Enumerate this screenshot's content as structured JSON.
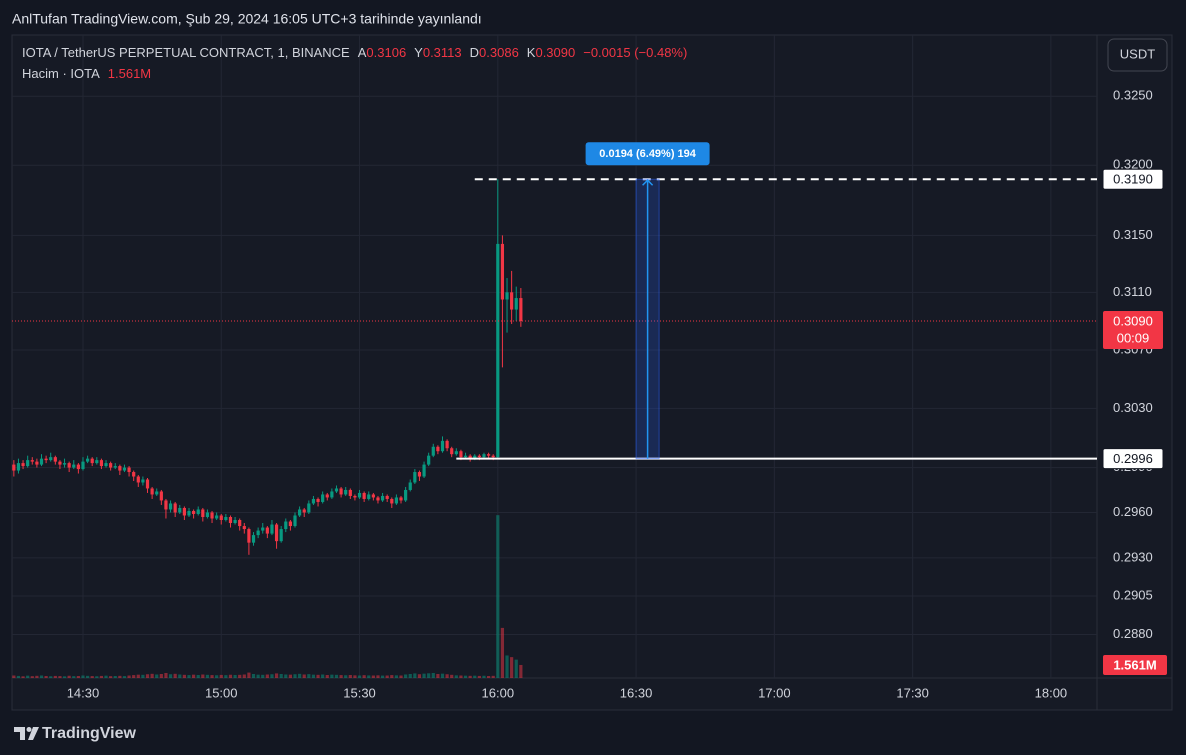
{
  "header": {
    "published": "AnlTufan TradingView.com, Şub 29, 2024 16:05 UTC+3 tarihinde yayınlandı"
  },
  "footer": {
    "brand": "TradingView"
  },
  "chart_data": {
    "type": "candlestick",
    "currency": "USDT",
    "legend": {
      "symbol": "IOTA / TetherUS PERPETUAL CONTRACT, 1, BINANCE",
      "o_key": "A",
      "o": "0.3106",
      "h_key": "Y",
      "h": "0.3113",
      "l_key": "D",
      "l": "0.3086",
      "c_key": "K",
      "c": "0.3090",
      "change": "−0.0015 (−0.48%)",
      "volume_key": "Hacim · IOTA",
      "volume": "1.561M"
    },
    "up_color": "#089981",
    "down_color": "#f23645",
    "log_scale": true,
    "grid": true,
    "xlim": [
      854.6,
      1090
    ],
    "xticks": [
      {
        "value": 870,
        "label": "14:30"
      },
      {
        "value": 900,
        "label": "15:00"
      },
      {
        "value": 930,
        "label": "15:30"
      },
      {
        "value": 960,
        "label": "16:00"
      },
      {
        "value": 990,
        "label": "16:30"
      },
      {
        "value": 1020,
        "label": "17:00"
      },
      {
        "value": 1050,
        "label": "17:30"
      },
      {
        "value": 1080,
        "label": "18:00"
      }
    ],
    "ylim": [
      0.2852,
      0.3295
    ],
    "yticks": [
      {
        "value": 0.325,
        "label": "0.3250"
      },
      {
        "value": 0.32,
        "label": "0.3200"
      },
      {
        "value": 0.315,
        "label": "0.3150"
      },
      {
        "value": 0.311,
        "label": "0.3110"
      },
      {
        "value": 0.307,
        "label": "0.3070"
      },
      {
        "value": 0.303,
        "label": "0.3030"
      },
      {
        "value": 0.299,
        "label": "0.2990"
      },
      {
        "value": 0.296,
        "label": "0.2960"
      },
      {
        "value": 0.293,
        "label": "0.2930"
      },
      {
        "value": 0.2905,
        "label": "0.2905"
      },
      {
        "value": 0.288,
        "label": "0.2880"
      }
    ],
    "x": [
      855,
      856,
      857,
      858,
      859,
      860,
      861,
      862,
      863,
      864,
      865,
      866,
      867,
      868,
      869,
      870,
      871,
      872,
      873,
      874,
      875,
      876,
      877,
      878,
      879,
      880,
      881,
      882,
      883,
      884,
      885,
      886,
      887,
      888,
      889,
      890,
      891,
      892,
      893,
      894,
      895,
      896,
      897,
      898,
      899,
      900,
      901,
      902,
      903,
      904,
      905,
      906,
      907,
      908,
      909,
      910,
      911,
      912,
      913,
      914,
      915,
      916,
      917,
      918,
      919,
      920,
      921,
      922,
      923,
      924,
      925,
      926,
      927,
      928,
      929,
      930,
      931,
      932,
      933,
      934,
      935,
      936,
      937,
      938,
      939,
      940,
      941,
      942,
      943,
      944,
      945,
      946,
      947,
      948,
      949,
      950,
      951,
      952,
      953,
      954,
      955,
      956,
      957,
      958,
      959,
      960,
      961,
      962,
      963,
      964,
      965
    ],
    "ohlc": [
      [
        0.2992,
        0.2995,
        0.2984,
        0.2988
      ],
      [
        0.2988,
        0.2996,
        0.2986,
        0.2993
      ],
      [
        0.2993,
        0.2995,
        0.2989,
        0.2991
      ],
      [
        0.2991,
        0.2998,
        0.299,
        0.2995
      ],
      [
        0.2995,
        0.2997,
        0.2992,
        0.2994
      ],
      [
        0.2994,
        0.2996,
        0.299,
        0.2992
      ],
      [
        0.2992,
        0.2999,
        0.2991,
        0.2996
      ],
      [
        0.2996,
        0.2998,
        0.2993,
        0.2995
      ],
      [
        0.2995,
        0.3,
        0.2994,
        0.2997
      ],
      [
        0.2997,
        0.2998,
        0.2992,
        0.2994
      ],
      [
        0.2994,
        0.2995,
        0.2989,
        0.2992
      ],
      [
        0.2992,
        0.2996,
        0.299,
        0.2993
      ],
      [
        0.2993,
        0.2994,
        0.2987,
        0.299
      ],
      [
        0.299,
        0.2995,
        0.2989,
        0.2992
      ],
      [
        0.2992,
        0.2993,
        0.2986,
        0.2989
      ],
      [
        0.2989,
        0.2997,
        0.2988,
        0.2994
      ],
      [
        0.2994,
        0.2998,
        0.2993,
        0.2996
      ],
      [
        0.2996,
        0.2997,
        0.2991,
        0.2993
      ],
      [
        0.2993,
        0.2997,
        0.2992,
        0.2995
      ],
      [
        0.2995,
        0.2996,
        0.2989,
        0.2991
      ],
      [
        0.2991,
        0.2995,
        0.299,
        0.2993
      ],
      [
        0.2993,
        0.2994,
        0.2988,
        0.299
      ],
      [
        0.299,
        0.2993,
        0.2989,
        0.2991
      ],
      [
        0.2991,
        0.2992,
        0.2985,
        0.2988
      ],
      [
        0.2988,
        0.2992,
        0.2987,
        0.299
      ],
      [
        0.299,
        0.2991,
        0.2984,
        0.2987
      ],
      [
        0.2987,
        0.2988,
        0.2981,
        0.2984
      ],
      [
        0.2984,
        0.2985,
        0.2977,
        0.298
      ],
      [
        0.298,
        0.2984,
        0.2978,
        0.2982
      ],
      [
        0.2982,
        0.2983,
        0.2973,
        0.2976
      ],
      [
        0.2976,
        0.2977,
        0.2969,
        0.2972
      ],
      [
        0.2972,
        0.2976,
        0.2971,
        0.2974
      ],
      [
        0.2974,
        0.2975,
        0.2965,
        0.2968
      ],
      [
        0.2968,
        0.2969,
        0.2956,
        0.2962
      ],
      [
        0.2962,
        0.2968,
        0.296,
        0.2966
      ],
      [
        0.2966,
        0.2967,
        0.2957,
        0.296
      ],
      [
        0.296,
        0.2965,
        0.2959,
        0.2963
      ],
      [
        0.2963,
        0.2964,
        0.2955,
        0.2958
      ],
      [
        0.2958,
        0.2963,
        0.2957,
        0.2961
      ],
      [
        0.2961,
        0.2962,
        0.2956,
        0.2959
      ],
      [
        0.2959,
        0.2964,
        0.2958,
        0.2962
      ],
      [
        0.2962,
        0.2963,
        0.2954,
        0.2957
      ],
      [
        0.2957,
        0.2962,
        0.2956,
        0.296
      ],
      [
        0.296,
        0.2961,
        0.2953,
        0.2956
      ],
      [
        0.2956,
        0.296,
        0.2955,
        0.2958
      ],
      [
        0.2958,
        0.2959,
        0.2952,
        0.2955
      ],
      [
        0.2955,
        0.2959,
        0.2954,
        0.2957
      ],
      [
        0.2957,
        0.2958,
        0.295,
        0.2953
      ],
      [
        0.2953,
        0.2957,
        0.2952,
        0.2955
      ],
      [
        0.2955,
        0.2956,
        0.2948,
        0.2951
      ],
      [
        0.2951,
        0.2953,
        0.2946,
        0.2949
      ],
      [
        0.2949,
        0.295,
        0.2932,
        0.294
      ],
      [
        0.294,
        0.2947,
        0.2938,
        0.2945
      ],
      [
        0.2945,
        0.295,
        0.2943,
        0.2948
      ],
      [
        0.2948,
        0.2953,
        0.2946,
        0.295
      ],
      [
        0.295,
        0.2951,
        0.2943,
        0.2946
      ],
      [
        0.2946,
        0.2955,
        0.2945,
        0.2952
      ],
      [
        0.2952,
        0.2953,
        0.2936,
        0.2941
      ],
      [
        0.2941,
        0.2951,
        0.294,
        0.2949
      ],
      [
        0.2949,
        0.2956,
        0.2947,
        0.2954
      ],
      [
        0.2954,
        0.2955,
        0.2948,
        0.2951
      ],
      [
        0.2951,
        0.296,
        0.295,
        0.2958
      ],
      [
        0.2958,
        0.2964,
        0.2957,
        0.2962
      ],
      [
        0.2962,
        0.2963,
        0.2957,
        0.296
      ],
      [
        0.296,
        0.2968,
        0.2959,
        0.2966
      ],
      [
        0.2966,
        0.2971,
        0.2965,
        0.2969
      ],
      [
        0.2969,
        0.297,
        0.2964,
        0.2967
      ],
      [
        0.2967,
        0.2974,
        0.2966,
        0.2972
      ],
      [
        0.2972,
        0.2973,
        0.2968,
        0.297
      ],
      [
        0.297,
        0.2976,
        0.2969,
        0.2974
      ],
      [
        0.2974,
        0.2978,
        0.2973,
        0.2976
      ],
      [
        0.2976,
        0.2977,
        0.297,
        0.2972
      ],
      [
        0.2972,
        0.2977,
        0.2971,
        0.2975
      ],
      [
        0.2975,
        0.2976,
        0.2969,
        0.2971
      ],
      [
        0.2971,
        0.2972,
        0.2968,
        0.297
      ],
      [
        0.297,
        0.2975,
        0.2969,
        0.2973
      ],
      [
        0.2973,
        0.2974,
        0.2967,
        0.2969
      ],
      [
        0.2969,
        0.2974,
        0.2968,
        0.2972
      ],
      [
        0.2972,
        0.2973,
        0.2968,
        0.297
      ],
      [
        0.297,
        0.2971,
        0.2966,
        0.2968
      ],
      [
        0.2968,
        0.2973,
        0.2967,
        0.2971
      ],
      [
        0.2971,
        0.2972,
        0.2967,
        0.2969
      ],
      [
        0.2969,
        0.297,
        0.2963,
        0.2966
      ],
      [
        0.2966,
        0.2972,
        0.2965,
        0.297
      ],
      [
        0.297,
        0.2971,
        0.2966,
        0.2968
      ],
      [
        0.2968,
        0.2977,
        0.2967,
        0.2975
      ],
      [
        0.2975,
        0.2982,
        0.2974,
        0.298
      ],
      [
        0.298,
        0.2989,
        0.2979,
        0.2987
      ],
      [
        0.2987,
        0.2988,
        0.2981,
        0.2984
      ],
      [
        0.2984,
        0.2994,
        0.2983,
        0.2992
      ],
      [
        0.2992,
        0.3,
        0.2991,
        0.2998
      ],
      [
        0.2998,
        0.3006,
        0.2997,
        0.3004
      ],
      [
        0.3004,
        0.3005,
        0.2999,
        0.3001
      ],
      [
        0.3001,
        0.3011,
        0.3,
        0.3008
      ],
      [
        0.3008,
        0.3009,
        0.3001,
        0.3003
      ],
      [
        0.3003,
        0.3004,
        0.2997,
        0.2999
      ],
      [
        0.2999,
        0.3003,
        0.2998,
        0.3001
      ],
      [
        0.3001,
        0.3002,
        0.2995,
        0.2997
      ],
      [
        0.2997,
        0.3,
        0.2996,
        0.2998
      ],
      [
        0.2998,
        0.2999,
        0.2994,
        0.2996
      ],
      [
        0.2996,
        0.2999,
        0.2995,
        0.2998
      ],
      [
        0.2998,
        0.2999,
        0.2995,
        0.2997
      ],
      [
        0.2997,
        0.3,
        0.2996,
        0.2999
      ],
      [
        0.2999,
        0.3,
        0.2996,
        0.2998
      ],
      [
        0.2998,
        0.2999,
        0.2995,
        0.2997
      ],
      [
        0.2997,
        0.319,
        0.2996,
        0.3144
      ],
      [
        0.3144,
        0.315,
        0.3058,
        0.3105
      ],
      [
        0.3105,
        0.312,
        0.3082,
        0.311
      ],
      [
        0.311,
        0.3125,
        0.3088,
        0.3098
      ],
      [
        0.3098,
        0.3114,
        0.309,
        0.3106
      ],
      [
        0.3106,
        0.3113,
        0.3086,
        0.309
      ]
    ],
    "volume": [
      300000,
      250000,
      200000,
      280000,
      220000,
      260000,
      300000,
      240000,
      210000,
      250000,
      230000,
      200000,
      270000,
      220000,
      240000,
      300000,
      260000,
      230000,
      210000,
      250000,
      280000,
      220000,
      240000,
      260000,
      230000,
      300000,
      350000,
      400000,
      380000,
      450000,
      500000,
      420000,
      480000,
      600000,
      450000,
      500000,
      420000,
      380000,
      350000,
      400000,
      360000,
      420000,
      380000,
      350000,
      330000,
      370000,
      340000,
      390000,
      360000,
      380000,
      420000,
      650000,
      480000,
      400000,
      380000,
      420000,
      450000,
      550000,
      480000,
      420000,
      400000,
      450000,
      500000,
      420000,
      460000,
      400000,
      380000,
      420000,
      360000,
      400000,
      380000,
      350000,
      330000,
      360000,
      320000,
      300000,
      340000,
      310000,
      300000,
      320000,
      290000,
      300000,
      350000,
      320000,
      300000,
      420000,
      480000,
      550000,
      450000,
      520000,
      560000,
      600000,
      480000,
      520000,
      450000,
      380000,
      320000,
      300000,
      280000,
      260000,
      280000,
      250000,
      270000,
      240000,
      260000,
      19500000,
      6000000,
      2700000,
      2500000,
      2200000,
      1561000
    ],
    "volume_ylim": [
      0,
      77000000
    ],
    "volume_label": "1.561M",
    "last_price": {
      "value": 0.309,
      "label": "0.3090",
      "countdown": "00:09"
    },
    "lines": [
      {
        "value": 0.319,
        "label": "0.3190",
        "style": "dashed",
        "x_start": 955
      },
      {
        "value": 0.2996,
        "label": "0.2996",
        "style": "solid",
        "x_start": 951
      }
    ],
    "measure": {
      "label": "0.0194 (6.49%) 194",
      "x": [
        990,
        995
      ]
    }
  }
}
